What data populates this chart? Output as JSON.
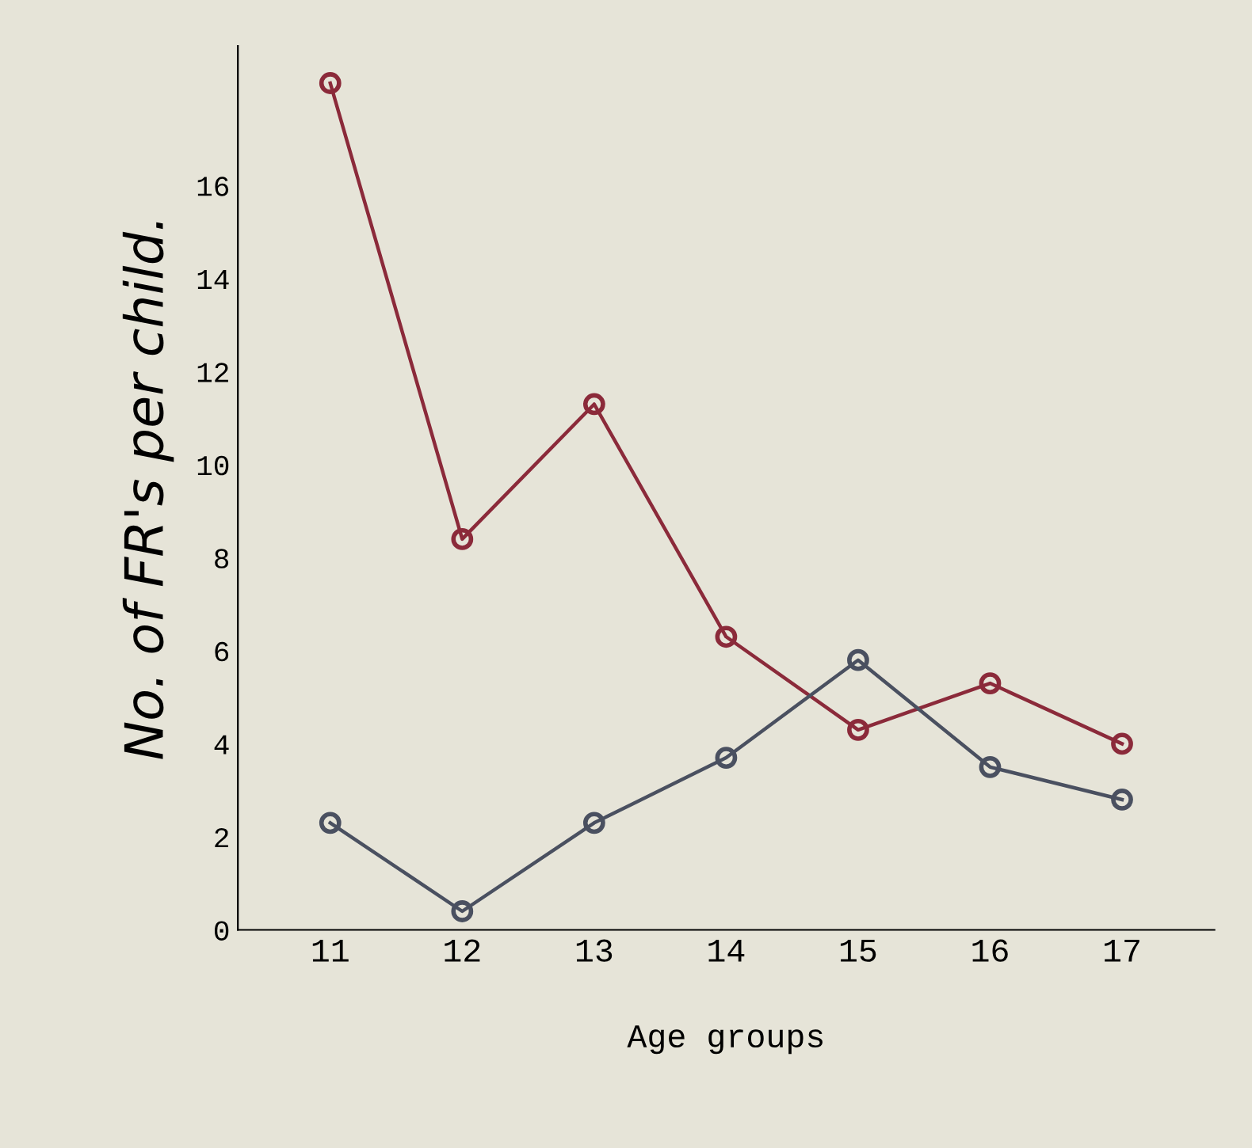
{
  "chart_data": {
    "type": "line",
    "xlabel": "Age groups",
    "ylabel": "No. of FR's per child.",
    "categories": [
      "11",
      "12",
      "13",
      "14",
      "15",
      "16",
      "17"
    ],
    "series": [
      {
        "color": "#8b2a3a",
        "values": [
          18.2,
          8.4,
          11.3,
          6.3,
          4.3,
          5.3,
          4.0
        ]
      },
      {
        "color": "#4a5060",
        "values": [
          2.3,
          0.4,
          2.3,
          3.7,
          5.8,
          3.5,
          2.8
        ]
      }
    ],
    "ylim": [
      0,
      19
    ],
    "yticks": [
      0,
      2,
      4,
      6,
      8,
      10,
      12,
      14,
      16
    ],
    "grid": false,
    "marker": "circle",
    "line_style": "solid"
  }
}
